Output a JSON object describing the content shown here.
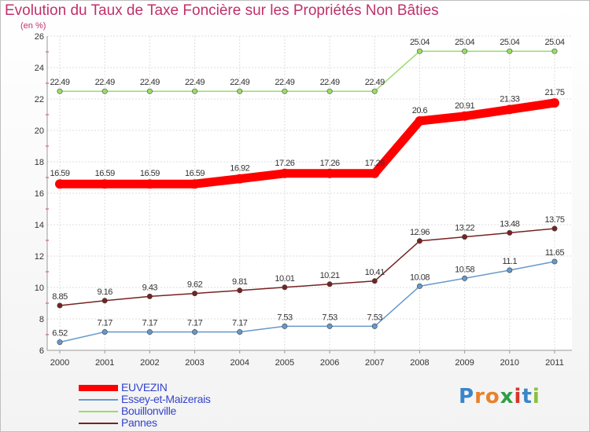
{
  "chart_data": {
    "type": "line",
    "title": "Evolution du Taux de Taxe Foncière sur les Propriétés Non Bâties",
    "subtitle": "(en %)",
    "xlabel": "",
    "ylabel": "",
    "x": [
      "2000",
      "2001",
      "2002",
      "2003",
      "2004",
      "2005",
      "2006",
      "2007",
      "2008",
      "2009",
      "2010",
      "2011"
    ],
    "ylim": [
      6,
      26
    ],
    "yticks": [
      "6",
      "8",
      "10",
      "12",
      "14",
      "16",
      "18",
      "20",
      "22",
      "24",
      "26"
    ],
    "grid": true,
    "legend_position": "bottom-left",
    "series": [
      {
        "name": "EUVEZIN",
        "color": "#ff0000",
        "values": [
          16.59,
          16.59,
          16.59,
          16.59,
          16.92,
          17.26,
          17.26,
          17.26,
          20.6,
          20.91,
          21.33,
          21.75
        ],
        "labels": [
          "16.59",
          "16.59",
          "16.59",
          "16.59",
          "16.92",
          "17.26",
          "17.26",
          "17.26",
          "20.6",
          "20.91",
          "21.33",
          "21.75"
        ]
      },
      {
        "name": "Essey-et-Maizerais",
        "color": "#6699cc",
        "values": [
          6.52,
          7.17,
          7.17,
          7.17,
          7.17,
          7.53,
          7.53,
          7.53,
          10.08,
          10.58,
          11.1,
          11.65
        ],
        "labels": [
          "6.52",
          "7.17",
          "7.17",
          "7.17",
          "7.17",
          "7.53",
          "7.53",
          "7.53",
          "10.08",
          "10.58",
          "11.1",
          "11.65"
        ]
      },
      {
        "name": "Bouillonville",
        "color": "#99dd66",
        "values": [
          22.49,
          22.49,
          22.49,
          22.49,
          22.49,
          22.49,
          22.49,
          22.49,
          25.04,
          25.04,
          25.04,
          25.04
        ],
        "labels": [
          "22.49",
          "22.49",
          "22.49",
          "22.49",
          "22.49",
          "22.49",
          "22.49",
          "22.49",
          "25.04",
          "25.04",
          "25.04",
          "25.04"
        ]
      },
      {
        "name": "Pannes",
        "color": "#772222",
        "values": [
          8.85,
          9.16,
          9.43,
          9.62,
          9.81,
          10.01,
          10.21,
          10.41,
          12.96,
          13.22,
          13.48,
          13.75
        ],
        "labels": [
          "8.85",
          "9.16",
          "9.43",
          "9.62",
          "9.81",
          "10.01",
          "10.21",
          "10.41",
          "12.96",
          "13.22",
          "13.48",
          "13.75"
        ]
      }
    ]
  },
  "logo": {
    "letters": [
      "P",
      "r",
      "o",
      "x",
      "i",
      "t",
      "i"
    ]
  }
}
